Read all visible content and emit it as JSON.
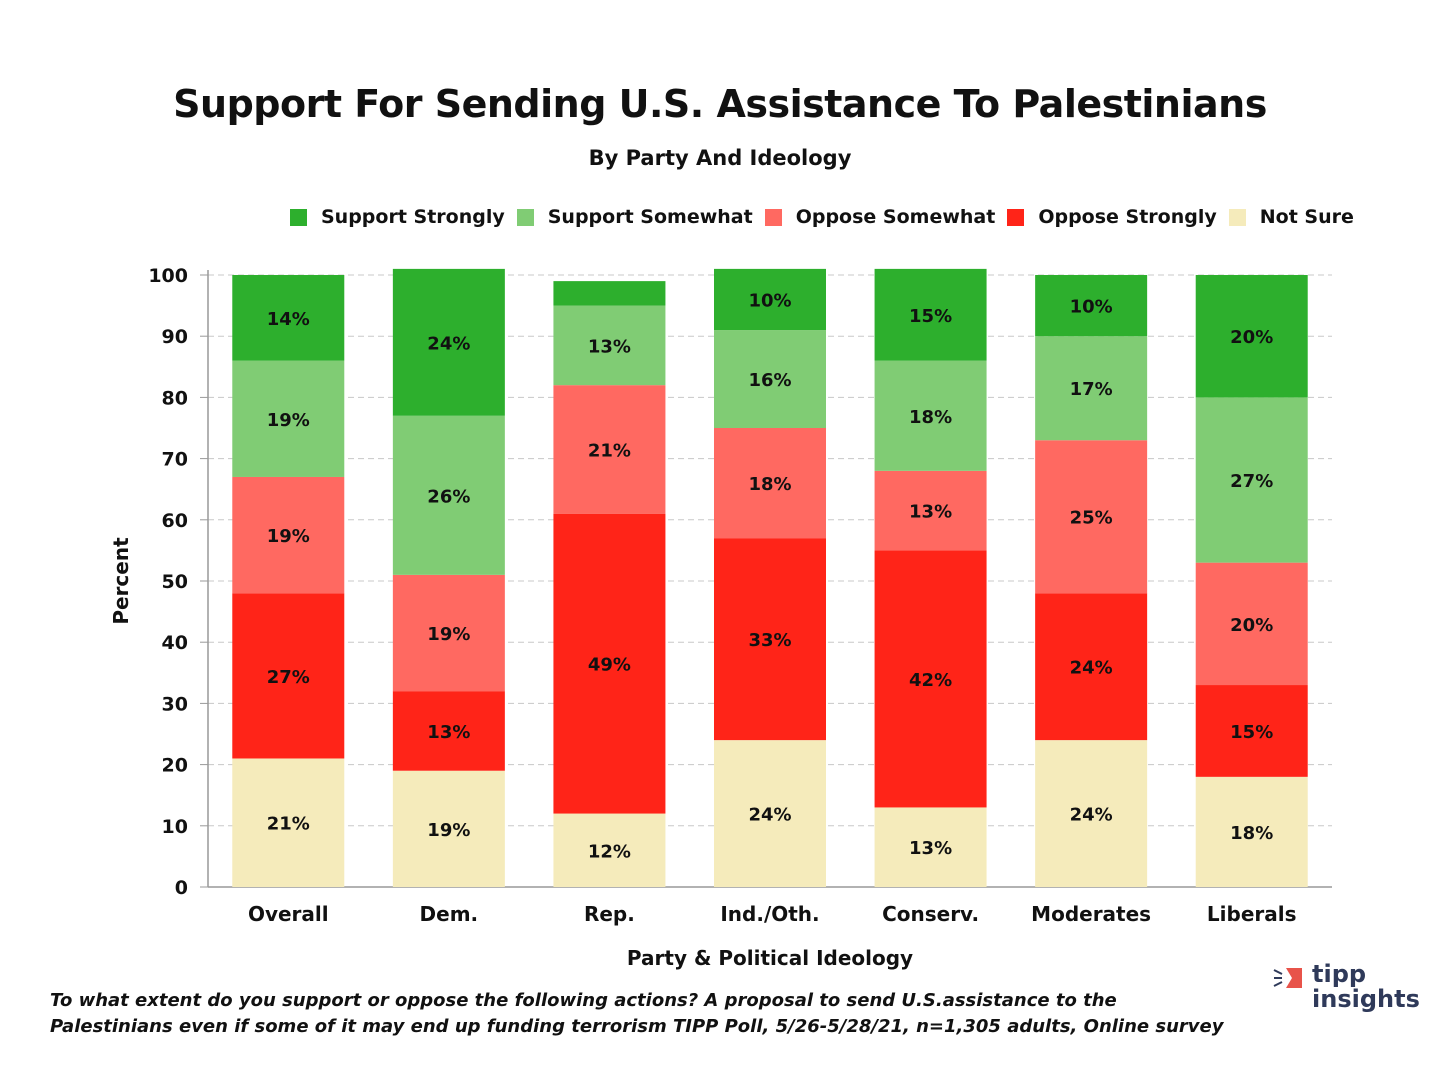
{
  "chart_data": {
    "type": "bar",
    "stacked": true,
    "title": "Support For Sending U.S. Assistance To Palestinians",
    "subtitle": "By Party And Ideology",
    "xlabel": "Party & Political Ideology",
    "ylabel": "Percent",
    "ylim": [
      0,
      100
    ],
    "yticks": [
      0,
      10,
      20,
      30,
      40,
      50,
      60,
      70,
      80,
      90,
      100
    ],
    "grid": true,
    "legend_position": "top",
    "categories": [
      "Overall",
      "Dem.",
      "Rep.",
      "Ind./Oth.",
      "Conserv.",
      "Moderates",
      "Liberals"
    ],
    "series": [
      {
        "name": "Not Sure",
        "color": "#f5ebbb",
        "values": [
          21,
          19,
          12,
          24,
          13,
          24,
          18
        ],
        "labels": [
          "21%",
          "19%",
          "12%",
          "24%",
          "13%",
          "24%",
          "18%"
        ]
      },
      {
        "name": "Oppose Strongly",
        "color": "#ff2418",
        "values": [
          27,
          13,
          49,
          33,
          42,
          24,
          15
        ],
        "labels": [
          "27%",
          "13%",
          "49%",
          "33%",
          "42%",
          "24%",
          "15%"
        ]
      },
      {
        "name": "Oppose Somewhat",
        "color": "#ff6961",
        "values": [
          19,
          19,
          21,
          18,
          13,
          25,
          20
        ],
        "labels": [
          "19%",
          "19%",
          "21%",
          "18%",
          "13%",
          "25%",
          "20%"
        ]
      },
      {
        "name": "Support Somewhat",
        "color": "#80cc74",
        "values": [
          19,
          26,
          13,
          16,
          18,
          17,
          27
        ],
        "labels": [
          "19%",
          "26%",
          "13%",
          "16%",
          "18%",
          "17%",
          "27%"
        ]
      },
      {
        "name": "Support Strongly",
        "color": "#2daf2d",
        "values": [
          14,
          24,
          4,
          10,
          15,
          10,
          20
        ],
        "labels": [
          "14%",
          "24%",
          "",
          "10%",
          "15%",
          "10%",
          "20%"
        ]
      }
    ],
    "legend_order": [
      "Support Strongly",
      "Support Somewhat",
      "Oppose Somewhat",
      "Oppose Strongly",
      "Not Sure"
    ]
  },
  "footnote": {
    "line1": "To what extent do you support or oppose the following actions? A proposal to send U.S.assistance to the",
    "line2": "Palestinians even if some of it may end up funding terrorism TIPP Poll, 5/26-5/28/21, n=1,305 adults, Online survey"
  },
  "logo": {
    "line1": "tipp",
    "line2": "insights",
    "accent": "#e8534a"
  }
}
